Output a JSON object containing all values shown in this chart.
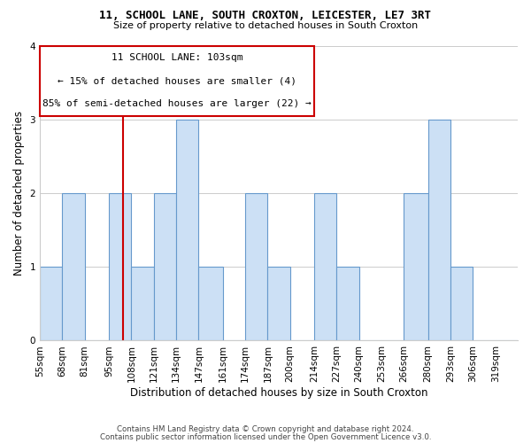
{
  "title": "11, SCHOOL LANE, SOUTH CROXTON, LEICESTER, LE7 3RT",
  "subtitle": "Size of property relative to detached houses in South Croxton",
  "xlabel": "Distribution of detached houses by size in South Croxton",
  "ylabel": "Number of detached properties",
  "footer_line1": "Contains HM Land Registry data © Crown copyright and database right 2024.",
  "footer_line2": "Contains public sector information licensed under the Open Government Licence v3.0.",
  "bin_labels": [
    "55sqm",
    "68sqm",
    "81sqm",
    "95sqm",
    "108sqm",
    "121sqm",
    "134sqm",
    "147sqm",
    "161sqm",
    "174sqm",
    "187sqm",
    "200sqm",
    "214sqm",
    "227sqm",
    "240sqm",
    "253sqm",
    "266sqm",
    "280sqm",
    "293sqm",
    "306sqm",
    "319sqm"
  ],
  "bar_heights": [
    1,
    2,
    0,
    2,
    1,
    2,
    3,
    1,
    0,
    2,
    1,
    0,
    2,
    1,
    0,
    0,
    2,
    3,
    1,
    0,
    0
  ],
  "bar_color": "#cce0f5",
  "bar_edgecolor": "#6699cc",
  "marker_value": 103,
  "marker_color": "#cc0000",
  "annotation_title": "11 SCHOOL LANE: 103sqm",
  "annotation_line1": "← 15% of detached houses are smaller (4)",
  "annotation_line2": "85% of semi-detached houses are larger (22) →",
  "annotation_box_color": "#cc0000",
  "ylim": [
    0,
    4
  ],
  "yticks": [
    0,
    1,
    2,
    3,
    4
  ],
  "bin_edges": [
    55,
    68,
    81,
    95,
    108,
    121,
    134,
    147,
    161,
    174,
    187,
    200,
    214,
    227,
    240,
    253,
    266,
    280,
    293,
    306,
    319,
    332
  ]
}
